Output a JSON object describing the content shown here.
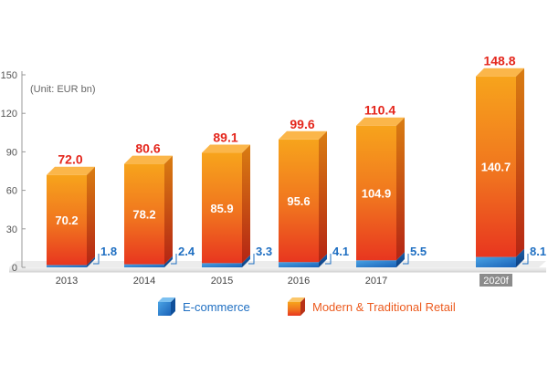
{
  "chart_data": {
    "type": "bar",
    "unit_note": "(Unit: EUR bn)",
    "y_ticks": [
      "0",
      "30",
      "60",
      "90",
      "120",
      "150"
    ],
    "ylim": [
      0,
      150
    ],
    "categories": [
      "2013",
      "2014",
      "2015",
      "2016",
      "2017",
      "2020f"
    ],
    "series": [
      {
        "name": "E-commerce",
        "values": [
          1.8,
          2.4,
          3.3,
          4.1,
          5.5,
          8.1
        ],
        "labels": [
          "1.8",
          "2.4",
          "3.3",
          "4.1",
          "5.5",
          "8.1"
        ]
      },
      {
        "name": "Modern & Traditional Retail",
        "values": [
          70.2,
          78.2,
          85.9,
          95.6,
          104.9,
          140.7
        ],
        "labels": [
          "70.2",
          "78.2",
          "85.9",
          "95.6",
          "104.9",
          "140.7"
        ]
      }
    ],
    "totals": [
      72.0,
      80.6,
      89.1,
      99.6,
      110.4,
      148.8
    ],
    "total_labels": [
      "72.0",
      "80.6",
      "89.1",
      "99.6",
      "110.4",
      "148.8"
    ],
    "legend": [
      "E-commerce",
      "Modern & Traditional Retail"
    ],
    "legend_position": "bottom",
    "grid": false,
    "colors": {
      "ecommerce_light": "#4aa3e4",
      "ecommerce_dark": "#0f4f9a",
      "retail_top": "#f7a21b",
      "retail_bottom": "#e8361f",
      "total_label": "#e4261c",
      "ecommerce_label": "#1f6fc2",
      "retail_label": "#ffffff",
      "axis_text": "#555555",
      "year_highlight_bg": "#8c8c8c"
    }
  }
}
